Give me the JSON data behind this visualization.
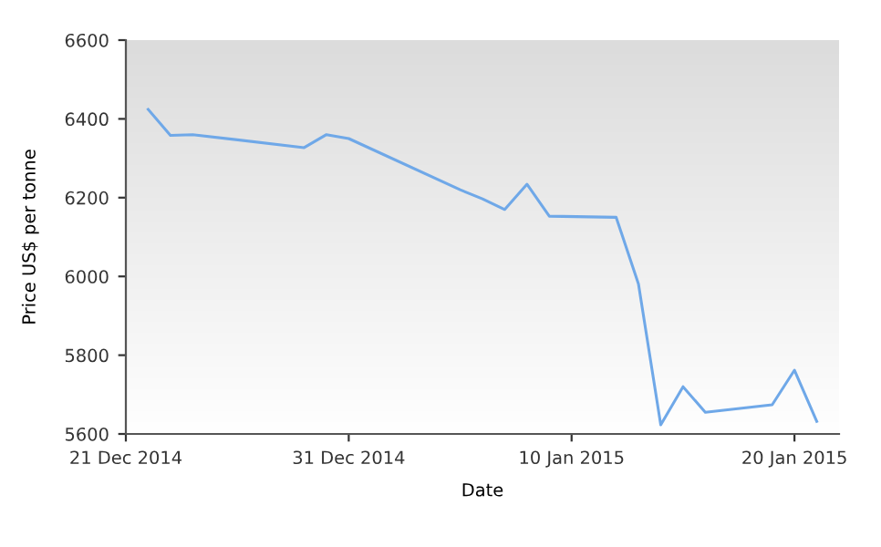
{
  "chart_data": {
    "type": "line",
    "xlabel": "Date",
    "ylabel": "Price US$ per tonne",
    "x": [
      "2014-12-22",
      "2014-12-23",
      "2014-12-24",
      "2014-12-29",
      "2014-12-30",
      "2014-12-31",
      "2015-01-05",
      "2015-01-06",
      "2015-01-07",
      "2015-01-08",
      "2015-01-09",
      "2015-01-12",
      "2015-01-13",
      "2015-01-14",
      "2015-01-15",
      "2015-01-16",
      "2015-01-19",
      "2015-01-20",
      "2015-01-21"
    ],
    "series": [
      {
        "color": "#6fa8e8",
        "values": [
          6424,
          6358,
          6360,
          6327,
          6360,
          6350,
          6220,
          6197,
          6170,
          6234,
          6153,
          6150,
          5981,
          5623,
          5720,
          5655,
          5674,
          5762,
          5632
        ]
      }
    ],
    "xlim": [
      "2014-12-21",
      "2015-01-22"
    ],
    "xticks": [
      {
        "value": "2014-12-21",
        "label": "21 Dec 2014"
      },
      {
        "value": "2014-12-31",
        "label": "31 Dec 2014"
      },
      {
        "value": "2015-01-10",
        "label": "10 Jan 2015"
      },
      {
        "value": "2015-01-20",
        "label": "20 Jan 2015"
      }
    ],
    "ylim": [
      5600,
      6600
    ],
    "yticks": [
      5600,
      5800,
      6000,
      6200,
      6400,
      6600
    ],
    "grid": false,
    "legend": false,
    "marker": "none",
    "line_style": "solid"
  }
}
